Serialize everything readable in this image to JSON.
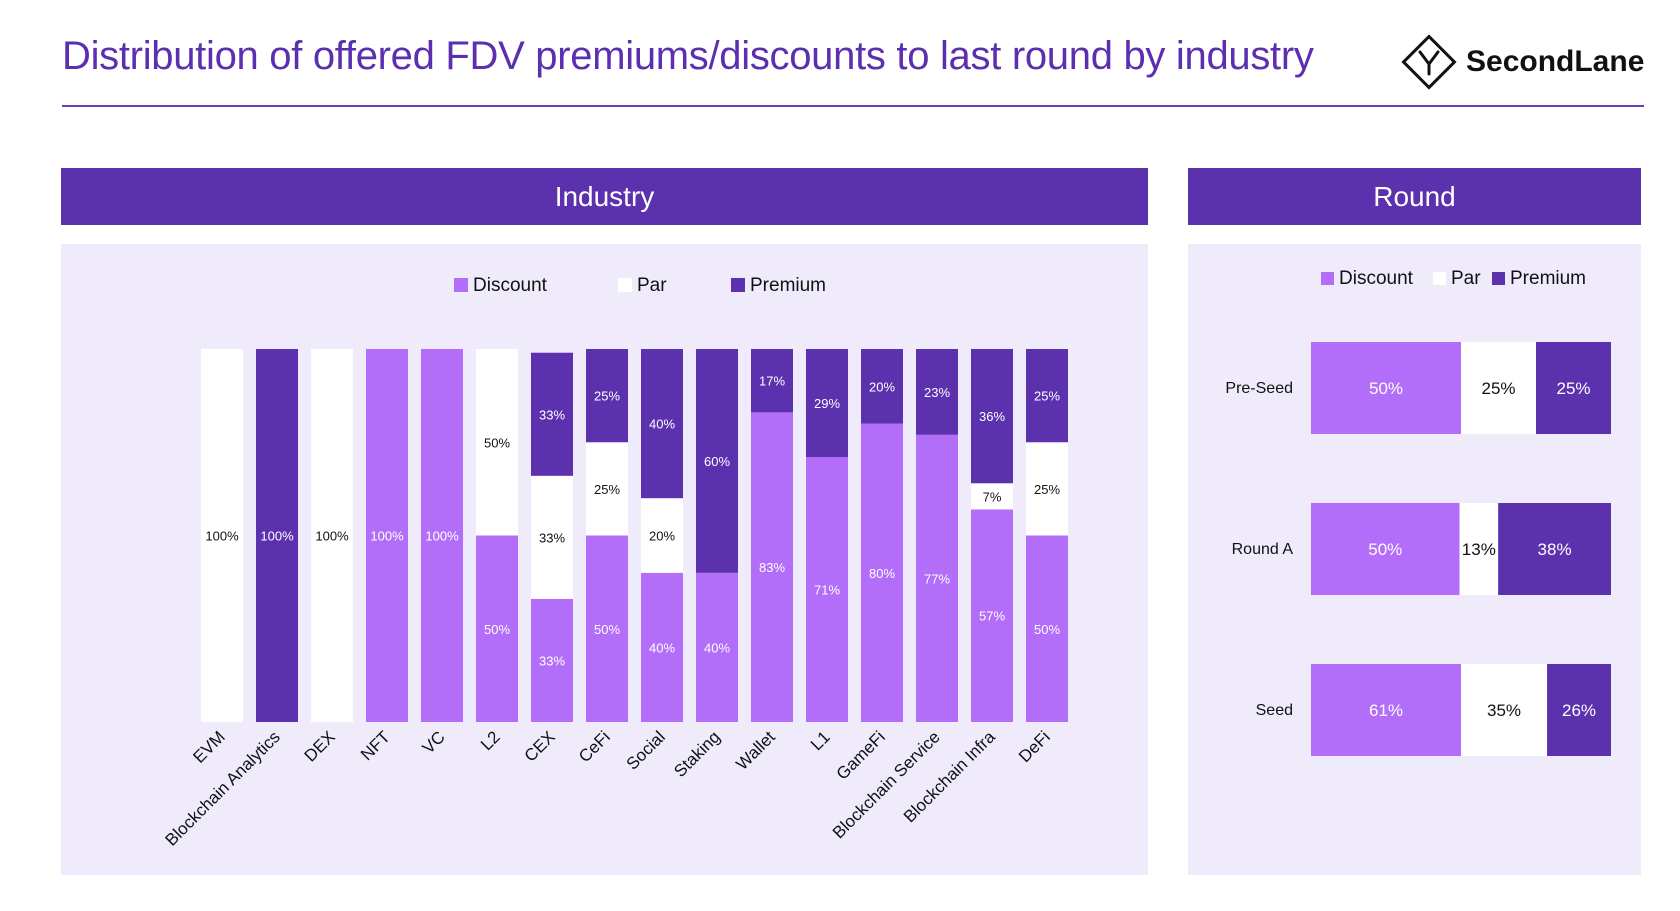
{
  "header": {
    "title": "Distribution of offered FDV premiums/discounts to last round by industry",
    "logo_text": "SecondLane"
  },
  "colors": {
    "discount": "#b36ef9",
    "par": "#ffffff",
    "premium": "#5c31ae",
    "panel_header": "#5c31ae",
    "panel_bg": "#efebfb",
    "title": "#5b2fb0"
  },
  "icons": {
    "logo": "diamond-y-logo-icon"
  },
  "chart_data": [
    {
      "type": "bar",
      "title": "Industry",
      "stacked": true,
      "orientation": "vertical",
      "percent": true,
      "legend": [
        "Discount",
        "Par",
        "Premium"
      ],
      "legend_position": "top",
      "ylim": [
        0,
        100
      ],
      "grid": false,
      "categories": [
        "EVM",
        "Blockchain Analytics",
        "DEX",
        "NFT",
        "VC",
        "L2",
        "CEX",
        "CeFi",
        "Social",
        "Staking",
        "Wallet",
        "L1",
        "GameFi",
        "Blockchain Service",
        "Blockchain Infra",
        "DeFi"
      ],
      "series": [
        {
          "name": "Discount",
          "values": [
            0,
            0,
            0,
            100,
            100,
            50,
            33,
            50,
            40,
            40,
            83,
            71,
            80,
            77,
            57,
            50
          ]
        },
        {
          "name": "Par",
          "values": [
            100,
            0,
            100,
            0,
            0,
            50,
            33,
            25,
            20,
            0,
            0,
            0,
            0,
            0,
            7,
            25
          ]
        },
        {
          "name": "Premium",
          "values": [
            0,
            100,
            0,
            0,
            0,
            0,
            33,
            25,
            40,
            60,
            17,
            29,
            20,
            23,
            36,
            25
          ]
        }
      ]
    },
    {
      "type": "bar",
      "title": "Round",
      "stacked": true,
      "orientation": "horizontal",
      "percent": true,
      "legend": [
        "Discount",
        "Par",
        "Premium"
      ],
      "legend_position": "top",
      "grid": false,
      "categories": [
        "Pre-Seed",
        "Round A",
        "Seed"
      ],
      "series": [
        {
          "name": "Discount",
          "values": [
            50,
            50,
            61
          ]
        },
        {
          "name": "Par",
          "values": [
            25,
            13,
            35
          ]
        },
        {
          "name": "Premium",
          "values": [
            25,
            38,
            26
          ]
        }
      ]
    }
  ]
}
